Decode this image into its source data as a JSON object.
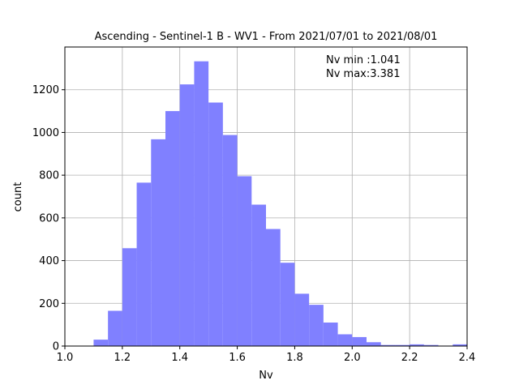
{
  "chart_data": {
    "type": "bar",
    "title": "Ascending - Sentinel-1 B - WV1 - From 2021/07/01 to 2021/08/01",
    "xlabel": "Nv",
    "ylabel": "count",
    "xlim": [
      1.0,
      2.4
    ],
    "ylim": [
      0,
      1400
    ],
    "xticks": [
      1.0,
      1.2,
      1.4,
      1.6,
      1.8,
      2.0,
      2.2,
      2.4
    ],
    "xtick_labels": [
      "1.0",
      "1.2",
      "1.4",
      "1.6",
      "1.8",
      "2.0",
      "2.2",
      "2.4"
    ],
    "yticks": [
      0,
      200,
      400,
      600,
      800,
      1000,
      1200
    ],
    "ytick_labels": [
      "0",
      "200",
      "400",
      "600",
      "800",
      "1000",
      "1200"
    ],
    "grid": true,
    "bar_color": "#8080ff",
    "annotations": [
      "Nv min :1.041",
      "Nv max:3.381"
    ],
    "bins": [
      {
        "x0": 1.1,
        "x1": 1.15,
        "count": 30
      },
      {
        "x0": 1.15,
        "x1": 1.2,
        "count": 165
      },
      {
        "x0": 1.2,
        "x1": 1.25,
        "count": 458
      },
      {
        "x0": 1.25,
        "x1": 1.3,
        "count": 765
      },
      {
        "x0": 1.3,
        "x1": 1.35,
        "count": 968
      },
      {
        "x0": 1.35,
        "x1": 1.4,
        "count": 1100
      },
      {
        "x0": 1.4,
        "x1": 1.45,
        "count": 1225
      },
      {
        "x0": 1.45,
        "x1": 1.5,
        "count": 1333
      },
      {
        "x0": 1.5,
        "x1": 1.55,
        "count": 1140
      },
      {
        "x0": 1.55,
        "x1": 1.6,
        "count": 988
      },
      {
        "x0": 1.6,
        "x1": 1.65,
        "count": 795
      },
      {
        "x0": 1.65,
        "x1": 1.7,
        "count": 662
      },
      {
        "x0": 1.7,
        "x1": 1.75,
        "count": 548
      },
      {
        "x0": 1.75,
        "x1": 1.8,
        "count": 390
      },
      {
        "x0": 1.8,
        "x1": 1.85,
        "count": 245
      },
      {
        "x0": 1.85,
        "x1": 1.9,
        "count": 193
      },
      {
        "x0": 1.9,
        "x1": 1.95,
        "count": 110
      },
      {
        "x0": 1.95,
        "x1": 2.0,
        "count": 55
      },
      {
        "x0": 2.0,
        "x1": 2.05,
        "count": 42
      },
      {
        "x0": 2.05,
        "x1": 2.1,
        "count": 18
      },
      {
        "x0": 2.1,
        "x1": 2.15,
        "count": 5
      },
      {
        "x0": 2.15,
        "x1": 2.2,
        "count": 5
      },
      {
        "x0": 2.2,
        "x1": 2.25,
        "count": 8
      },
      {
        "x0": 2.25,
        "x1": 2.3,
        "count": 5
      },
      {
        "x0": 2.3,
        "x1": 2.35,
        "count": 2
      },
      {
        "x0": 2.35,
        "x1": 2.4,
        "count": 8
      }
    ]
  }
}
